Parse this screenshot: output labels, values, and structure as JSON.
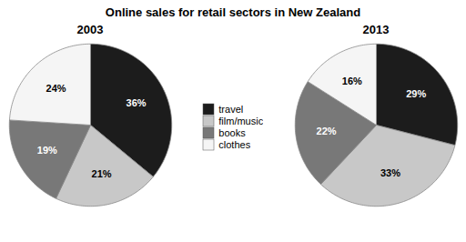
{
  "chart_data": {
    "type": "pie",
    "title": "Online sales for retail sectors in New Zealand",
    "categories": [
      "travel",
      "film/music",
      "books",
      "clothes"
    ],
    "colors": [
      "#1c1c1c",
      "#c8c8c8",
      "#787878",
      "#f5f5f5"
    ],
    "series": [
      {
        "name": "2003",
        "values": [
          36,
          21,
          19,
          24
        ],
        "value_labels": [
          "36%",
          "21%",
          "19%",
          "24%"
        ]
      },
      {
        "name": "2013",
        "values": [
          29,
          33,
          22,
          16
        ],
        "value_labels": [
          "29%",
          "33%",
          "22%",
          "16%"
        ]
      }
    ],
    "data_labels": true,
    "legend": "center"
  }
}
